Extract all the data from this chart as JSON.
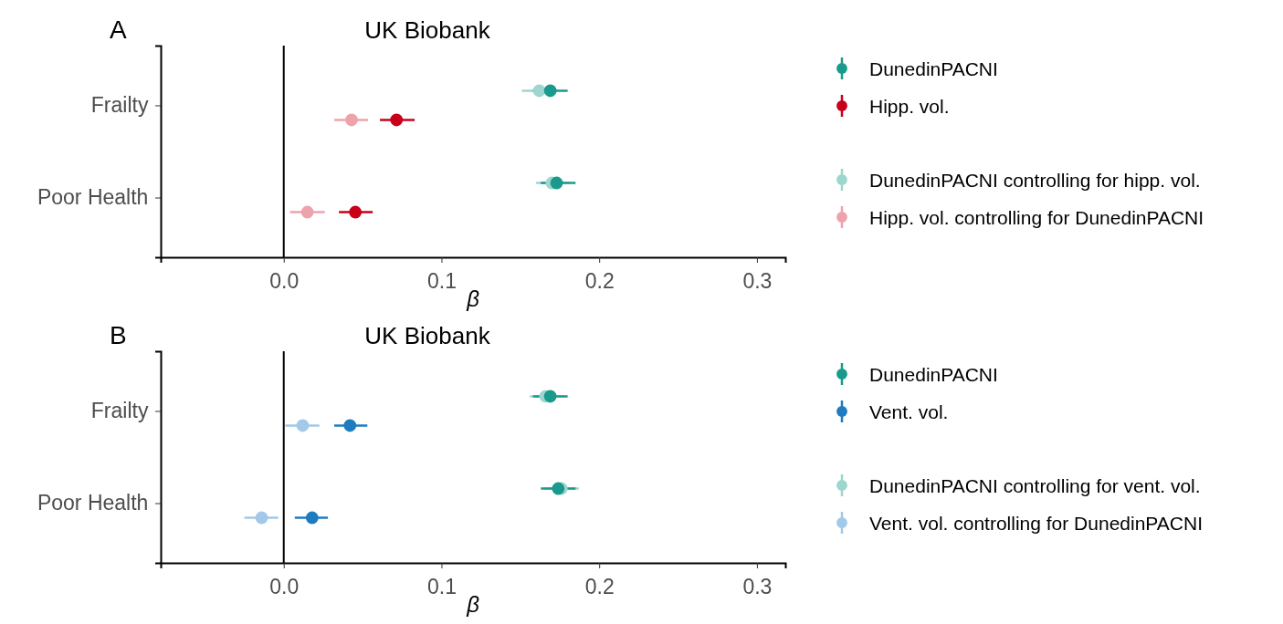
{
  "chart_data": [
    {
      "type": "scatter",
      "title": "UK Biobank",
      "xlabel": "β",
      "annotations": [
        "A"
      ],
      "orientation": "horizontal",
      "categories": [
        "Frailty",
        "Poor Health"
      ],
      "xlim": [
        -0.078,
        0.318
      ],
      "xticks": [
        {
          "value": 0,
          "label": "0.0"
        },
        0.1,
        0.2,
        0.3
      ],
      "ref_lines": [
        {
          "axis": "x",
          "value": 0,
          "color": "#000000"
        }
      ],
      "legend": "right",
      "marker": "circle",
      "grid": false,
      "series": [
        {
          "name": "DunedinPACNI",
          "color": "#1a9a8c",
          "values": [
            0.169,
            0.173
          ],
          "errors": [
            [
              0.158,
              0.18
            ],
            [
              0.163,
              0.185
            ]
          ]
        },
        {
          "name": "Hipp. vol.",
          "color": "#c8001a",
          "values": [
            0.0715,
            0.0454
          ],
          "errors": [
            [
              0.061,
              0.083
            ],
            [
              0.035,
              0.0564
            ]
          ]
        },
        {
          "name": "DunedinPACNI controlling for hipp. vol.",
          "color": "#9dd6cf",
          "values": [
            0.162,
            0.17
          ],
          "errors": [
            [
              0.151,
              0.173
            ],
            [
              0.16,
              0.181
            ]
          ]
        },
        {
          "name": "Hipp. vol. controlling for DunedinPACNI",
          "color": "#eda3ab",
          "values": [
            0.043,
            0.015
          ],
          "errors": [
            [
              0.032,
              0.0535
            ],
            [
              0.004,
              0.026
            ]
          ]
        }
      ]
    },
    {
      "type": "scatter",
      "title": "UK Biobank",
      "xlabel": "β",
      "annotations": [
        "B"
      ],
      "orientation": "horizontal",
      "categories": [
        "Frailty",
        "Poor Health"
      ],
      "xlim": [
        -0.078,
        0.318
      ],
      "xticks": [
        {
          "value": 0,
          "label": "0.0"
        },
        0.1,
        0.2,
        0.3
      ],
      "ref_lines": [
        {
          "axis": "x",
          "value": 0,
          "color": "#000000"
        }
      ],
      "legend": "right",
      "marker": "circle",
      "grid": false,
      "series": [
        {
          "name": "DunedinPACNI",
          "color": "#1a9a8c",
          "values": [
            0.169,
            0.174
          ],
          "errors": [
            [
              0.158,
              0.18
            ],
            [
              0.163,
              0.185
            ]
          ]
        },
        {
          "name": "Vent. vol.",
          "color": "#1f7bc0",
          "values": [
            0.042,
            0.018
          ],
          "errors": [
            [
              0.032,
              0.053
            ],
            [
              0.007,
              0.028
            ]
          ]
        },
        {
          "name": "DunedinPACNI controlling for vent. vol.",
          "color": "#9dd6cf",
          "values": [
            0.166,
            0.176
          ],
          "errors": [
            [
              0.156,
              0.178
            ],
            [
              0.165,
              0.187
            ]
          ]
        },
        {
          "name": "Vent. vol. controlling for DunedinPACNI",
          "color": "#a3c8e8",
          "values": [
            0.012,
            -0.014
          ],
          "errors": [
            [
              0.001,
              0.0226
            ],
            [
              -0.025,
              -0.0035
            ]
          ]
        }
      ]
    }
  ]
}
